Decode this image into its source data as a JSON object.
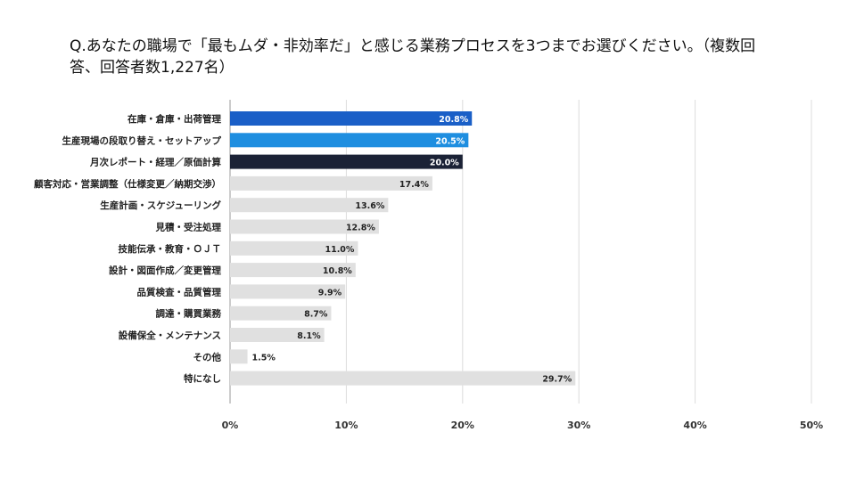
{
  "chart_data": {
    "type": "bar",
    "orientation": "horizontal",
    "title": "Q.あなたの職場で「最もムダ・非効率だ」と感じる業務プロセスを3つまでお選びください。（複数回答、回答者数1,227名）",
    "categories": [
      "在庫・倉庫・出荷管理",
      "生産現場の段取り替え・セットアップ",
      "月次レポート・経理／原価計算",
      "顧客対応・営業調整（仕様変更／納期交渉）",
      "生産計画・スケジューリング",
      "見積・受注処理",
      "技能伝承・教育・ＯＪＴ",
      "設計・図面作成／変更管理",
      "品質検査・品質管理",
      "調達・購買業務",
      "設備保全・メンテナンス",
      "その他",
      "特になし"
    ],
    "values": [
      20.8,
      20.5,
      20.0,
      17.4,
      13.6,
      12.8,
      11.0,
      10.8,
      9.9,
      8.7,
      8.1,
      1.5,
      29.7
    ],
    "value_labels": [
      "20.8%",
      "20.5%",
      "20.0%",
      "17.4%",
      "13.6%",
      "12.8%",
      "11.0%",
      "10.8%",
      "9.9%",
      "8.7%",
      "8.1%",
      "1.5%",
      "29.7%"
    ],
    "colors": [
      "#1a5fc7",
      "#1e8ee0",
      "#1b2236",
      "#e0e0e0",
      "#e0e0e0",
      "#e0e0e0",
      "#e0e0e0",
      "#e0e0e0",
      "#e0e0e0",
      "#e0e0e0",
      "#e0e0e0",
      "#e0e0e0",
      "#e0e0e0"
    ],
    "xlim": [
      0,
      50
    ],
    "xticks": [
      0,
      10,
      20,
      30,
      40,
      50
    ],
    "xtick_labels": [
      "0%",
      "10%",
      "20%",
      "30%",
      "40%",
      "50%"
    ],
    "grid": true,
    "legend": "none"
  }
}
